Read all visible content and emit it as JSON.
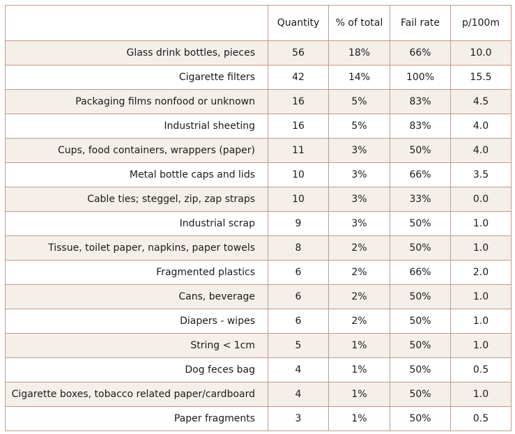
{
  "table": {
    "columns": [
      "",
      "Quantity",
      "% of total",
      "Fail rate",
      "p/100m"
    ],
    "rows": [
      {
        "item": "Glass drink bottles, pieces",
        "quantity": "56",
        "percent": "18%",
        "fail_rate": "66%",
        "per_100m": "10.0"
      },
      {
        "item": "Cigarette filters",
        "quantity": "42",
        "percent": "14%",
        "fail_rate": "100%",
        "per_100m": "15.5"
      },
      {
        "item": "Packaging films nonfood or unknown",
        "quantity": "16",
        "percent": "5%",
        "fail_rate": "83%",
        "per_100m": "4.5"
      },
      {
        "item": "Industrial sheeting",
        "quantity": "16",
        "percent": "5%",
        "fail_rate": "83%",
        "per_100m": "4.0"
      },
      {
        "item": "Cups, food containers, wrappers (paper)",
        "quantity": "11",
        "percent": "3%",
        "fail_rate": "50%",
        "per_100m": "4.0"
      },
      {
        "item": "Metal bottle caps and lids",
        "quantity": "10",
        "percent": "3%",
        "fail_rate": "66%",
        "per_100m": "3.5"
      },
      {
        "item": "Cable ties; steggel, zip, zap straps",
        "quantity": "10",
        "percent": "3%",
        "fail_rate": "33%",
        "per_100m": "0.0"
      },
      {
        "item": "Industrial scrap",
        "quantity": "9",
        "percent": "3%",
        "fail_rate": "50%",
        "per_100m": "1.0"
      },
      {
        "item": "Tissue, toilet paper, napkins, paper towels",
        "quantity": "8",
        "percent": "2%",
        "fail_rate": "50%",
        "per_100m": "1.0"
      },
      {
        "item": "Fragmented plastics",
        "quantity": "6",
        "percent": "2%",
        "fail_rate": "66%",
        "per_100m": "2.0"
      },
      {
        "item": "Cans, beverage",
        "quantity": "6",
        "percent": "2%",
        "fail_rate": "50%",
        "per_100m": "1.0"
      },
      {
        "item": "Diapers - wipes",
        "quantity": "6",
        "percent": "2%",
        "fail_rate": "50%",
        "per_100m": "1.0"
      },
      {
        "item": "String < 1cm",
        "quantity": "5",
        "percent": "1%",
        "fail_rate": "50%",
        "per_100m": "1.0"
      },
      {
        "item": "Dog feces bag",
        "quantity": "4",
        "percent": "1%",
        "fail_rate": "50%",
        "per_100m": "0.5"
      },
      {
        "item": "Cigarette boxes, tobacco related paper/cardboard",
        "quantity": "4",
        "percent": "1%",
        "fail_rate": "50%",
        "per_100m": "1.0"
      },
      {
        "item": "Paper fragments",
        "quantity": "3",
        "percent": "1%",
        "fail_rate": "50%",
        "per_100m": "0.5"
      }
    ]
  },
  "colors": {
    "border": "#c09a84",
    "stripe": "#f5efea",
    "text": "#1a1a1a"
  }
}
